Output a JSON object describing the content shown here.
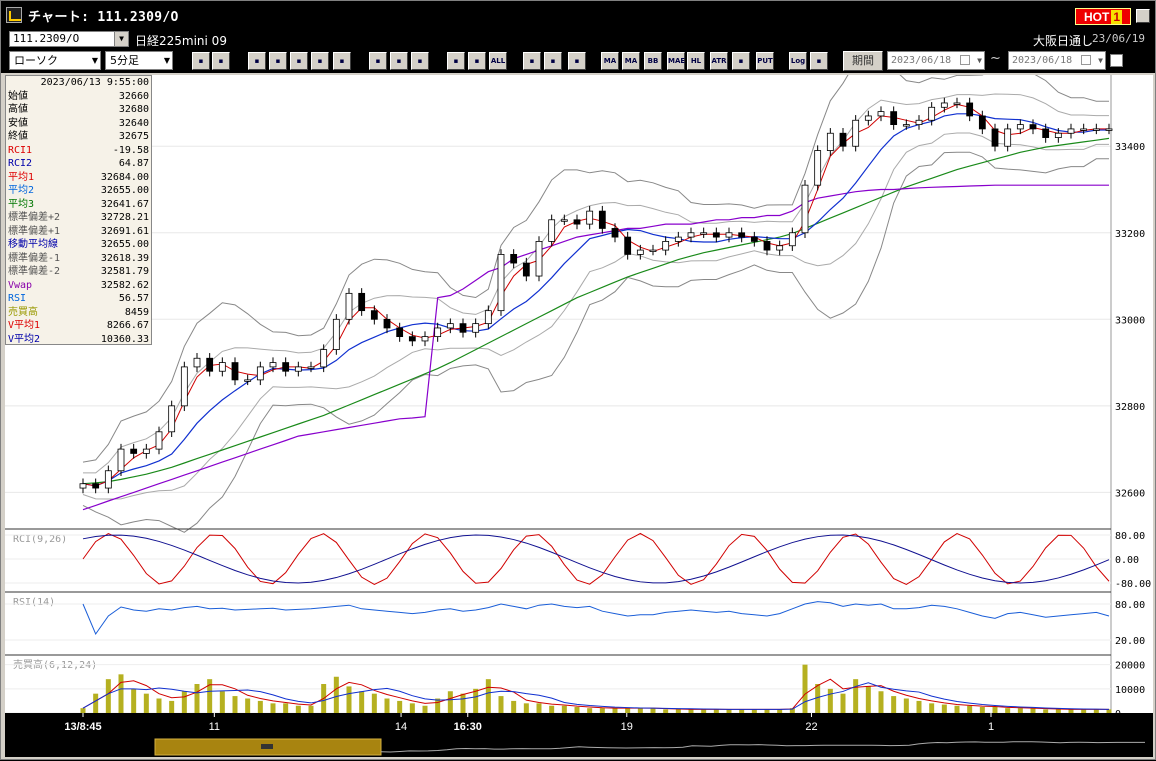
{
  "window": {
    "title": "チャート: 111.2309/O",
    "hot_label": "HOT",
    "hot_number": "1"
  },
  "symbol_bar": {
    "symbol": "111.2309/O",
    "name": "日経225mini 09",
    "session": "大阪日通し",
    "date": "23/06/19"
  },
  "toolbar": {
    "chart_type": "ローソク",
    "interval": "5分足",
    "period_label": "期間",
    "date_from": "2023/06/18",
    "date_to": "2023/06/18",
    "tilde": "~",
    "buttons": [
      "MA",
      "BB",
      "MAE",
      "HL",
      "ATR",
      "PUT",
      "Log",
      "ALL"
    ]
  },
  "info_panel": {
    "timestamp": "2023/06/13 9:55:00",
    "rows": [
      {
        "label": "始値",
        "value": "32660",
        "color": "#000000"
      },
      {
        "label": "高値",
        "value": "32680",
        "color": "#000000"
      },
      {
        "label": "安値",
        "value": "32640",
        "color": "#000000"
      },
      {
        "label": "終値",
        "value": "32675",
        "color": "#000000"
      },
      {
        "label": "RCI1",
        "value": "-19.58",
        "color": "#dd0000"
      },
      {
        "label": "RCI2",
        "value": "64.87",
        "color": "#0000aa"
      },
      {
        "label": "平均1",
        "value": "32684.00",
        "color": "#dd0000"
      },
      {
        "label": "平均2",
        "value": "32655.00",
        "color": "#0066dd"
      },
      {
        "label": "平均3",
        "value": "32641.67",
        "color": "#007700"
      },
      {
        "label": "標準偏差+2",
        "value": "32728.21",
        "color": "#555555"
      },
      {
        "label": "標準偏差+1",
        "value": "32691.61",
        "color": "#555555"
      },
      {
        "label": "移動平均線",
        "value": "32655.00",
        "color": "#0000aa"
      },
      {
        "label": "標準偏差-1",
        "value": "32618.39",
        "color": "#555555"
      },
      {
        "label": "標準偏差-2",
        "value": "32581.79",
        "color": "#555555"
      },
      {
        "label": "Vwap",
        "value": "32582.62",
        "color": "#8800aa"
      },
      {
        "label": "RSI",
        "value": "56.57",
        "color": "#0066dd"
      },
      {
        "label": "売買高",
        "value": "8459",
        "color": "#999900"
      },
      {
        "label": "V平均1",
        "value": "8266.67",
        "color": "#dd0000"
      },
      {
        "label": "V平均2",
        "value": "10360.33",
        "color": "#0000aa"
      }
    ]
  },
  "price_axis": [
    "33400",
    "33200",
    "33000",
    "32800",
    "32600"
  ],
  "rci_panel": {
    "label": "RCI(9,26)",
    "ticks": [
      "80.00",
      "0.00",
      "-80.00"
    ]
  },
  "rsi_panel": {
    "label": "RSI(14)",
    "ticks": [
      "80.00",
      "20.00"
    ]
  },
  "vol_panel": {
    "label": "売買高(6,12,24)",
    "ticks": [
      "20000",
      "10000",
      "0"
    ]
  },
  "time_axis": [
    {
      "label": "13/8:45",
      "bold": true
    },
    {
      "label": "11",
      "bold": false
    },
    {
      "label": "14",
      "bold": false
    },
    {
      "label": "16:30",
      "bold": true
    },
    {
      "label": "19",
      "bold": false
    },
    {
      "label": "22",
      "bold": false
    },
    {
      "label": "1",
      "bold": false
    }
  ],
  "chart_data": {
    "type": "candlestick",
    "y_range": [
      32520,
      33560
    ],
    "close": [
      32620,
      32610,
      32650,
      32700,
      32690,
      32700,
      32740,
      32800,
      32890,
      32910,
      32880,
      32900,
      32860,
      32860,
      32890,
      32900,
      32880,
      32890,
      32890,
      32930,
      33000,
      33060,
      33020,
      33000,
      32980,
      32960,
      32950,
      32960,
      32980,
      32990,
      32970,
      32990,
      33020,
      33150,
      33130,
      33100,
      33180,
      33230,
      33230,
      33220,
      33250,
      33210,
      33190,
      33150,
      33160,
      33160,
      33180,
      33190,
      33200,
      33200,
      33190,
      33200,
      33190,
      33180,
      33160,
      33170,
      33200,
      33310,
      33390,
      33430,
      33400,
      33460,
      33470,
      33480,
      33450,
      33450,
      33460,
      33490,
      33500,
      33500,
      33470,
      33440,
      33400,
      33440,
      33450,
      33440,
      33420,
      33430,
      33440,
      33440,
      33440,
      33440
    ],
    "vwap": [
      32560,
      32570,
      32580,
      32590,
      32600,
      32610,
      32620,
      32630,
      32640,
      32650,
      32660,
      32670,
      32680,
      32690,
      32700,
      32710,
      32720,
      32730,
      32735,
      32740,
      32745,
      32750,
      32755,
      32760,
      32765,
      32770,
      32772,
      32775,
      33050,
      33055,
      33070,
      33090,
      33110,
      33120,
      33140,
      33150,
      33160,
      33170,
      33180,
      33190,
      33195,
      33200,
      33205,
      33210,
      33210,
      33215,
      33220,
      33220,
      33220,
      33225,
      33230,
      33230,
      33235,
      33235,
      33240,
      33240,
      33250,
      33270,
      33280,
      33285,
      33290,
      33295,
      33298,
      33300,
      33300,
      33302,
      33304,
      33305,
      33306,
      33307,
      33308,
      33309,
      33310,
      33310,
      33310,
      33310,
      33310,
      33310,
      33310,
      33310,
      33310,
      33310
    ],
    "ma_long": [
      32620,
      32622,
      32625,
      32630,
      32636,
      32642,
      32650,
      32658,
      32668,
      32678,
      32688,
      32698,
      32708,
      32718,
      32728,
      32738,
      32748,
      32758,
      32768,
      32778,
      32790,
      32802,
      32814,
      32826,
      32838,
      32850,
      32862,
      32874,
      32886,
      32900,
      32915,
      32930,
      32945,
      32960,
      32975,
      32990,
      33005,
      33020,
      33035,
      33050,
      33062,
      33074,
      33086,
      33098,
      33108,
      33118,
      33128,
      33138,
      33146,
      33154,
      33160,
      33166,
      33172,
      33178,
      33184,
      33190,
      33198,
      33210,
      33222,
      33234,
      33246,
      33258,
      33270,
      33282,
      33294,
      33306,
      33316,
      33326,
      33336,
      33346,
      33354,
      33362,
      33370,
      33378,
      33386,
      33392,
      33398,
      33402,
      33406,
      33410,
      33414,
      33418
    ],
    "rsi": [
      80,
      30,
      60,
      75,
      70,
      68,
      72,
      70,
      74,
      76,
      72,
      73,
      70,
      71,
      72,
      73,
      70,
      71,
      72,
      74,
      76,
      78,
      72,
      70,
      68,
      66,
      64,
      66,
      70,
      72,
      68,
      70,
      74,
      80,
      76,
      72,
      78,
      80,
      76,
      74,
      76,
      68,
      64,
      60,
      62,
      62,
      66,
      68,
      70,
      68,
      66,
      68,
      64,
      62,
      60,
      64,
      72,
      80,
      84,
      82,
      76,
      80,
      78,
      80,
      72,
      72,
      74,
      78,
      76,
      72,
      66,
      60,
      56,
      64,
      66,
      62,
      58,
      60,
      62,
      64,
      66,
      60
    ],
    "volume": [
      2000,
      8000,
      14000,
      16000,
      10000,
      8000,
      6000,
      5000,
      9000,
      12000,
      14000,
      9000,
      7000,
      6000,
      5000,
      4000,
      4000,
      3000,
      3000,
      12000,
      15000,
      11000,
      9000,
      8000,
      6000,
      5000,
      4000,
      3000,
      6000,
      9000,
      8000,
      10000,
      14000,
      7000,
      5000,
      4000,
      4000,
      3000,
      3000,
      2500,
      2000,
      2000,
      2000,
      2000,
      2000,
      2000,
      1500,
      1500,
      1500,
      1500,
      1500,
      1500,
      1500,
      1500,
      1500,
      1500,
      2000,
      20000,
      12000,
      10000,
      8000,
      14000,
      11000,
      9000,
      7000,
      6000,
      5000,
      4000,
      3500,
      3000,
      3000,
      2500,
      2500,
      2000,
      2000,
      2000,
      1500,
      1500,
      1500,
      1500,
      1500,
      1500
    ]
  }
}
